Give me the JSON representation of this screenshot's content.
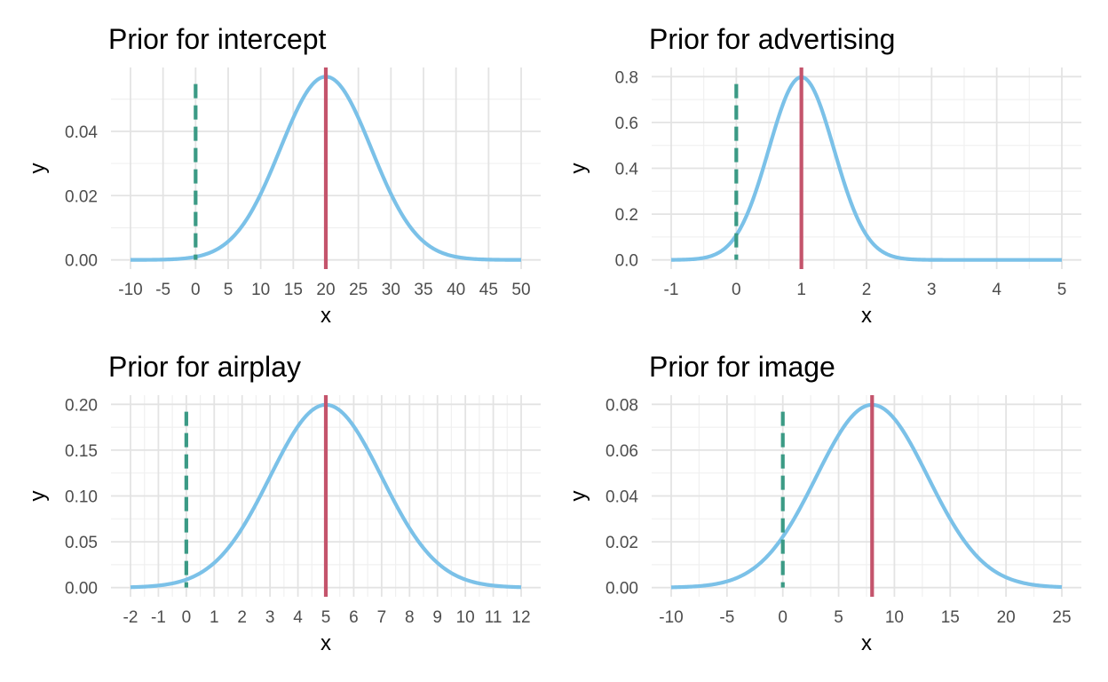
{
  "chart_data": [
    {
      "type": "line",
      "title": "Prior for intercept",
      "xlabel": "x",
      "ylabel": "y",
      "xlim": [
        -10,
        50
      ],
      "ylim": [
        0,
        0.057
      ],
      "xticks": [
        -10,
        -5,
        0,
        5,
        10,
        15,
        20,
        25,
        30,
        35,
        40,
        45,
        50
      ],
      "xtick_labels": [
        "-10",
        "-5",
        "0",
        "5",
        "10",
        "15",
        "20",
        "25",
        "30",
        "35",
        "40",
        "45",
        "50"
      ],
      "xminor": [],
      "yticks": [
        0,
        0.02,
        0.04
      ],
      "ytick_labels": [
        "0.00",
        "0.02",
        "0.04"
      ],
      "yminor": [
        0.01,
        0.03,
        0.05
      ],
      "density": {
        "distribution": "normal",
        "mean": 20,
        "sd": 7
      },
      "mean_line_x": 20,
      "zero_line_x": 0,
      "grid": true,
      "colors": {
        "curve": "#7BC1E8",
        "mean": "#C4546C",
        "zero": "#3B9A85"
      }
    },
    {
      "type": "line",
      "title": "Prior for advertising",
      "xlabel": "x",
      "ylabel": "y",
      "xlim": [
        -1,
        5
      ],
      "ylim": [
        0,
        0.8
      ],
      "xticks": [
        -1,
        0,
        1,
        2,
        3,
        4,
        5
      ],
      "xtick_labels": [
        "-1",
        "0",
        "1",
        "2",
        "3",
        "4",
        "5"
      ],
      "xminor": [
        -0.5,
        0.5,
        1.5,
        2.5,
        3.5,
        4.5
      ],
      "yticks": [
        0,
        0.2,
        0.4,
        0.6,
        0.8
      ],
      "ytick_labels": [
        "0.0",
        "0.2",
        "0.4",
        "0.6",
        "0.8"
      ],
      "yminor": [
        0.1,
        0.3,
        0.5,
        0.7
      ],
      "density": {
        "distribution": "normal",
        "mean": 1,
        "sd": 0.5
      },
      "mean_line_x": 1,
      "zero_line_x": 0,
      "grid": true,
      "colors": {
        "curve": "#7BC1E8",
        "mean": "#C4546C",
        "zero": "#3B9A85"
      }
    },
    {
      "type": "line",
      "title": "Prior for airplay",
      "xlabel": "x",
      "ylabel": "y",
      "xlim": [
        -2,
        12
      ],
      "ylim": [
        0,
        0.2
      ],
      "xticks": [
        -2,
        -1,
        0,
        1,
        2,
        3,
        4,
        5,
        6,
        7,
        8,
        9,
        10,
        11,
        12
      ],
      "xtick_labels": [
        "-2",
        "-1",
        "0",
        "1",
        "2",
        "3",
        "4",
        "5",
        "6",
        "7",
        "8",
        "9",
        "10",
        "11",
        "12"
      ],
      "xminor": [
        -1.5,
        -0.5,
        0.5,
        1.5,
        2.5,
        3.5,
        4.5,
        5.5,
        6.5,
        7.5,
        8.5,
        9.5,
        10.5,
        11.5
      ],
      "yticks": [
        0,
        0.05,
        0.1,
        0.15,
        0.2
      ],
      "ytick_labels": [
        "0.00",
        "0.05",
        "0.10",
        "0.15",
        "0.20"
      ],
      "yminor": [
        0.025,
        0.075,
        0.125,
        0.175
      ],
      "density": {
        "distribution": "normal",
        "mean": 5,
        "sd": 2
      },
      "mean_line_x": 5,
      "zero_line_x": 0,
      "grid": true,
      "colors": {
        "curve": "#7BC1E8",
        "mean": "#C4546C",
        "zero": "#3B9A85"
      }
    },
    {
      "type": "line",
      "title": "Prior for image",
      "xlabel": "x",
      "ylabel": "y",
      "xlim": [
        -10,
        25
      ],
      "ylim": [
        0,
        0.08
      ],
      "xticks": [
        -10,
        -5,
        0,
        5,
        10,
        15,
        20,
        25
      ],
      "xtick_labels": [
        "-10",
        "-5",
        "0",
        "5",
        "10",
        "15",
        "20",
        "25"
      ],
      "xminor": [
        -7.5,
        -2.5,
        2.5,
        7.5,
        12.5,
        17.5,
        22.5
      ],
      "yticks": [
        0,
        0.02,
        0.04,
        0.06,
        0.08
      ],
      "ytick_labels": [
        "0.00",
        "0.02",
        "0.04",
        "0.06",
        "0.08"
      ],
      "yminor": [
        0.01,
        0.03,
        0.05,
        0.07
      ],
      "density": {
        "distribution": "normal",
        "mean": 8,
        "sd": 5
      },
      "mean_line_x": 8,
      "zero_line_x": 0,
      "grid": true,
      "colors": {
        "curve": "#7BC1E8",
        "mean": "#C4546C",
        "zero": "#3B9A85"
      }
    }
  ]
}
